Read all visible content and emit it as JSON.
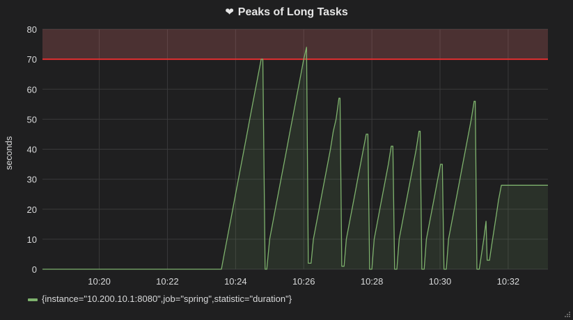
{
  "panel": {
    "title": "Peaks of Long Tasks",
    "title_icon": "heart-icon"
  },
  "chart_data": {
    "type": "line",
    "title": "Peaks of Long Tasks",
    "ylabel": "seconds",
    "xlabel": "",
    "ylim": [
      0,
      80
    ],
    "yticks": [
      0,
      10,
      20,
      30,
      40,
      50,
      60,
      70,
      80
    ],
    "xlim": [
      "10:18:20",
      "10:33:10"
    ],
    "xticks": [
      "10:20",
      "10:22",
      "10:24",
      "10:26",
      "10:28",
      "10:30",
      "10:32"
    ],
    "grid": true,
    "legend_position": "bottom-left",
    "threshold": {
      "value": 70,
      "color": "#e02f2f",
      "fill": "above"
    },
    "series": [
      {
        "name": "{instance=\"10.200.10.1:8080\",job=\"spring\",statistic=\"duration\"}",
        "color": "#7eb26d",
        "fill": true,
        "points": [
          [
            "10:18:20",
            0
          ],
          [
            "10:23:35",
            0
          ],
          [
            "10:23:40",
            5
          ],
          [
            "10:23:45",
            10
          ],
          [
            "10:23:50",
            15
          ],
          [
            "10:23:55",
            20
          ],
          [
            "10:24:00",
            25
          ],
          [
            "10:24:05",
            30
          ],
          [
            "10:24:10",
            35
          ],
          [
            "10:24:15",
            40
          ],
          [
            "10:24:20",
            45
          ],
          [
            "10:24:25",
            50
          ],
          [
            "10:24:30",
            55
          ],
          [
            "10:24:35",
            60
          ],
          [
            "10:24:40",
            65
          ],
          [
            "10:24:45",
            70
          ],
          [
            "10:24:48",
            70
          ],
          [
            "10:24:52",
            0
          ],
          [
            "10:24:55",
            0
          ],
          [
            "10:25:00",
            10
          ],
          [
            "10:25:05",
            15
          ],
          [
            "10:25:10",
            20
          ],
          [
            "10:25:15",
            25
          ],
          [
            "10:25:20",
            30
          ],
          [
            "10:25:25",
            35
          ],
          [
            "10:25:30",
            40
          ],
          [
            "10:25:35",
            45
          ],
          [
            "10:25:40",
            50
          ],
          [
            "10:25:45",
            55
          ],
          [
            "10:25:50",
            60
          ],
          [
            "10:25:55",
            65
          ],
          [
            "10:26:00",
            70
          ],
          [
            "10:26:05",
            74
          ],
          [
            "10:26:08",
            2
          ],
          [
            "10:26:13",
            2
          ],
          [
            "10:26:17",
            10
          ],
          [
            "10:26:22",
            15
          ],
          [
            "10:26:27",
            20
          ],
          [
            "10:26:32",
            25
          ],
          [
            "10:26:37",
            30
          ],
          [
            "10:26:42",
            35
          ],
          [
            "10:26:47",
            40
          ],
          [
            "10:26:52",
            46
          ],
          [
            "10:26:57",
            50
          ],
          [
            "10:27:02",
            57
          ],
          [
            "10:27:04",
            57
          ],
          [
            "10:27:07",
            1
          ],
          [
            "10:27:11",
            1
          ],
          [
            "10:27:15",
            10
          ],
          [
            "10:27:20",
            15
          ],
          [
            "10:27:25",
            20
          ],
          [
            "10:27:30",
            25
          ],
          [
            "10:27:35",
            30
          ],
          [
            "10:27:40",
            35
          ],
          [
            "10:27:45",
            40
          ],
          [
            "10:27:50",
            45
          ],
          [
            "10:27:53",
            45
          ],
          [
            "10:27:56",
            0
          ],
          [
            "10:28:00",
            0
          ],
          [
            "10:28:04",
            10
          ],
          [
            "10:28:09",
            15
          ],
          [
            "10:28:14",
            20
          ],
          [
            "10:28:19",
            25
          ],
          [
            "10:28:24",
            30
          ],
          [
            "10:28:29",
            35
          ],
          [
            "10:28:34",
            41
          ],
          [
            "10:28:37",
            41
          ],
          [
            "10:28:40",
            0
          ],
          [
            "10:28:44",
            0
          ],
          [
            "10:28:48",
            10
          ],
          [
            "10:28:53",
            15
          ],
          [
            "10:28:58",
            20
          ],
          [
            "10:29:03",
            25
          ],
          [
            "10:29:08",
            30
          ],
          [
            "10:29:13",
            35
          ],
          [
            "10:29:18",
            40
          ],
          [
            "10:29:23",
            46
          ],
          [
            "10:29:25",
            46
          ],
          [
            "10:29:28",
            0
          ],
          [
            "10:29:32",
            0
          ],
          [
            "10:29:36",
            10
          ],
          [
            "10:29:41",
            15
          ],
          [
            "10:29:46",
            20
          ],
          [
            "10:29:51",
            25
          ],
          [
            "10:29:56",
            30
          ],
          [
            "10:30:01",
            35
          ],
          [
            "10:30:04",
            35
          ],
          [
            "10:30:07",
            0
          ],
          [
            "10:30:11",
            0
          ],
          [
            "10:30:15",
            10
          ],
          [
            "10:30:20",
            15
          ],
          [
            "10:30:25",
            20
          ],
          [
            "10:30:30",
            25
          ],
          [
            "10:30:35",
            30
          ],
          [
            "10:30:40",
            35
          ],
          [
            "10:30:45",
            40
          ],
          [
            "10:30:50",
            45
          ],
          [
            "10:30:55",
            50
          ],
          [
            "10:31:00",
            56
          ],
          [
            "10:31:02",
            56
          ],
          [
            "10:31:05",
            0
          ],
          [
            "10:31:09",
            0
          ],
          [
            "10:31:13",
            5
          ],
          [
            "10:31:17",
            10
          ],
          [
            "10:31:21",
            16
          ],
          [
            "10:31:23",
            3
          ],
          [
            "10:31:27",
            3
          ],
          [
            "10:31:31",
            8
          ],
          [
            "10:31:35",
            13
          ],
          [
            "10:31:39",
            18
          ],
          [
            "10:31:43",
            23
          ],
          [
            "10:31:48",
            28
          ],
          [
            "10:33:10",
            28
          ]
        ]
      }
    ]
  }
}
